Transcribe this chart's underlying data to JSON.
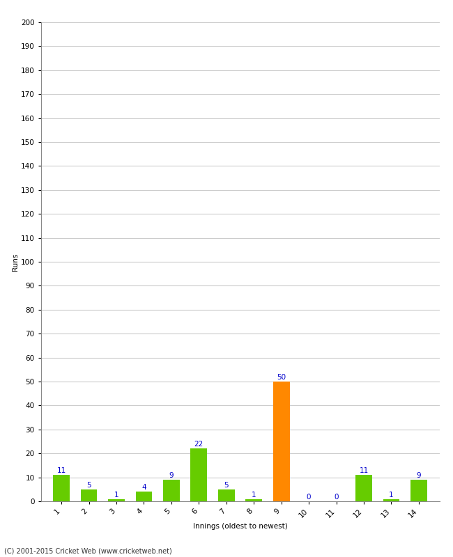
{
  "innings": [
    1,
    2,
    3,
    4,
    5,
    6,
    7,
    8,
    9,
    10,
    11,
    12,
    13,
    14
  ],
  "runs": [
    11,
    5,
    1,
    4,
    9,
    22,
    5,
    1,
    50,
    0,
    0,
    11,
    1,
    9
  ],
  "colors": [
    "#66cc00",
    "#66cc00",
    "#66cc00",
    "#66cc00",
    "#66cc00",
    "#66cc00",
    "#66cc00",
    "#66cc00",
    "#ff8800",
    "#66cc00",
    "#66cc00",
    "#66cc00",
    "#66cc00",
    "#66cc00"
  ],
  "xlabel": "Innings (oldest to newest)",
  "ylabel": "Runs",
  "ylim": [
    0,
    200
  ],
  "yticks": [
    0,
    10,
    20,
    30,
    40,
    50,
    60,
    70,
    80,
    90,
    100,
    110,
    120,
    130,
    140,
    150,
    160,
    170,
    180,
    190,
    200
  ],
  "label_color": "#0000cc",
  "label_fontsize": 7.5,
  "axis_label_fontsize": 7.5,
  "tick_fontsize": 7.5,
  "footer": "(C) 2001-2015 Cricket Web (www.cricketweb.net)",
  "footer_fontsize": 7,
  "background_color": "#ffffff",
  "grid_color": "#cccccc",
  "bar_width": 0.6
}
